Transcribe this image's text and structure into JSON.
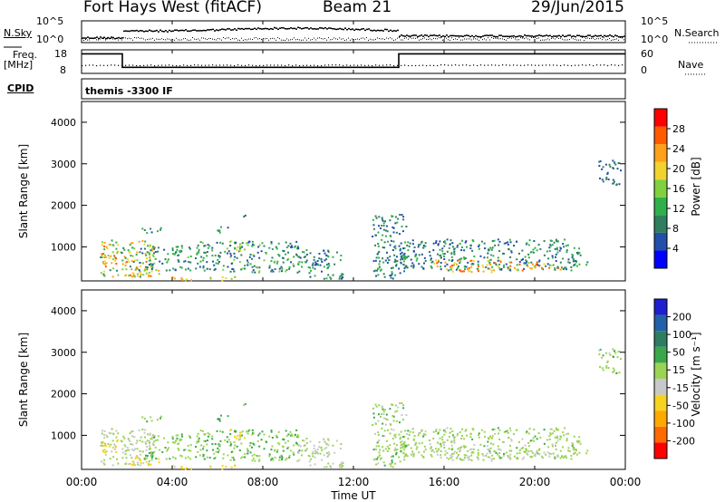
{
  "header": {
    "title": "Fort Hays West (fitACF)",
    "beam": "Beam 21",
    "date": "29/Jun/2015"
  },
  "top_panels": {
    "nsky_label": "N.Sky",
    "nsky_ticks": [
      "10^5",
      "10^0"
    ],
    "nsearch_label": "N.Search",
    "nsearch_ticks": [
      "10^5",
      "10^0"
    ],
    "freq_label_line1": "Freq.",
    "freq_label_line2": "[MHz]",
    "freq_ticks": [
      "18",
      "8"
    ],
    "nave_label": "Nave",
    "nave_ticks": [
      "60",
      "0"
    ],
    "cpid_label": "CPID",
    "cpid_text": "themis -3300 IF"
  },
  "colors": {
    "power_scale": [
      "#0000ff",
      "#214fa9",
      "#2f7f5f",
      "#2fb04b",
      "#7fd13f",
      "#f2d22e",
      "#ff9f1a",
      "#ff5a00",
      "#ff0000"
    ],
    "velocity_scale": [
      "#1f1fd0",
      "#2260a8",
      "#2e7d62",
      "#3aa84a",
      "#9bd454",
      "#c8c8c8",
      "#f5d320",
      "#ffa800",
      "#ff6a00",
      "#ff0000"
    ]
  },
  "chart_data": [
    {
      "type": "heatmap",
      "name": "power",
      "ylabel": "Slant Range [km]",
      "yticks": [
        "1000",
        "2000",
        "3000",
        "4000"
      ],
      "ylim": [
        180,
        4500
      ],
      "xlim": [
        0,
        24
      ],
      "colorbar_label": "Power [dB]",
      "colorbar_ticks": [
        "28",
        "24",
        "20",
        "16",
        "12",
        "8",
        "4"
      ],
      "colorbar_range": [
        0,
        32
      ]
    },
    {
      "type": "heatmap",
      "name": "velocity",
      "xlabel": "Time UT",
      "xticks": [
        "00:00",
        "04:00",
        "08:00",
        "12:00",
        "16:00",
        "20:00",
        "00:00"
      ],
      "ylabel": "Slant Range [km]",
      "yticks": [
        "1000",
        "2000",
        "3000",
        "4000"
      ],
      "ylim": [
        180,
        4500
      ],
      "xlim": [
        0,
        24
      ],
      "colorbar_label": "Velocity [m s⁻¹]",
      "colorbar_ticks": [
        "200",
        "100",
        "50",
        "15",
        "-15",
        "-50",
        "-100",
        "-200"
      ],
      "colorbar_range": [
        -250,
        250
      ]
    }
  ],
  "series": {
    "freq_step": [
      [
        0,
        17.5
      ],
      [
        1.8,
        17.5
      ],
      [
        1.8,
        11.5
      ],
      [
        14.0,
        11.5
      ],
      [
        14.0,
        17.5
      ],
      [
        24,
        17.5
      ]
    ],
    "scatter_clusters": [
      {
        "t0": 0.8,
        "t1": 3.2,
        "r0": 300,
        "r1": 1200,
        "pw0": 8,
        "pw1": 26,
        "vel": -15
      },
      {
        "t0": 0.9,
        "t1": 1.6,
        "r0": 600,
        "r1": 950,
        "pw0": 16,
        "pw1": 28,
        "vel": -80
      },
      {
        "t0": 2.0,
        "t1": 3.4,
        "r0": 300,
        "r1": 500,
        "pw0": 14,
        "pw1": 26,
        "vel": -80
      },
      {
        "t0": 3.4,
        "t1": 4.8,
        "r0": 200,
        "r1": 300,
        "pw0": 16,
        "pw1": 26,
        "vel": -60
      },
      {
        "t0": 2.5,
        "t1": 4.8,
        "r0": 450,
        "r1": 1050,
        "pw0": 4,
        "pw1": 16,
        "vel": 5
      },
      {
        "t0": 2.5,
        "t1": 3.5,
        "r0": 1350,
        "r1": 1500,
        "pw0": 6,
        "pw1": 14,
        "vel": 5
      },
      {
        "t0": 5.0,
        "t1": 9.6,
        "r0": 400,
        "r1": 1150,
        "pw0": 4,
        "pw1": 16,
        "vel": 10
      },
      {
        "t0": 6.5,
        "t1": 7.2,
        "r0": 900,
        "r1": 1200,
        "pw0": 10,
        "pw1": 20,
        "vel": -60
      },
      {
        "t0": 5.8,
        "t1": 6.5,
        "r0": 1350,
        "r1": 1500,
        "pw0": 6,
        "pw1": 14,
        "vel": 40
      },
      {
        "t0": 6.8,
        "t1": 7.2,
        "r0": 1700,
        "r1": 1800,
        "pw0": 6,
        "pw1": 14,
        "vel": 10
      },
      {
        "t0": 5.3,
        "t1": 6.8,
        "r0": 200,
        "r1": 300,
        "pw0": 16,
        "pw1": 26,
        "vel": -60
      },
      {
        "t0": 9.5,
        "t1": 11.5,
        "r0": 250,
        "r1": 950,
        "pw0": 4,
        "pw1": 14,
        "vel": -20
      },
      {
        "t0": 12.8,
        "t1": 14.3,
        "r0": 250,
        "r1": 1800,
        "pw0": 4,
        "pw1": 14,
        "vel": 0
      },
      {
        "t0": 14.0,
        "t1": 22.0,
        "r0": 450,
        "r1": 1200,
        "pw0": 4,
        "pw1": 14,
        "vel": 0
      },
      {
        "t0": 15.5,
        "t1": 18.5,
        "r0": 400,
        "r1": 700,
        "pw0": 16,
        "pw1": 28,
        "vel": -20
      },
      {
        "t0": 18.8,
        "t1": 21.2,
        "r0": 450,
        "r1": 650,
        "pw0": 16,
        "pw1": 28,
        "vel": -20
      },
      {
        "t0": 21.5,
        "t1": 22.3,
        "r0": 550,
        "r1": 700,
        "pw0": 8,
        "pw1": 16,
        "vel": 0
      },
      {
        "t0": 22.8,
        "t1": 23.8,
        "r0": 2500,
        "r1": 3100,
        "pw0": 4,
        "pw1": 10,
        "vel": 0
      }
    ]
  }
}
